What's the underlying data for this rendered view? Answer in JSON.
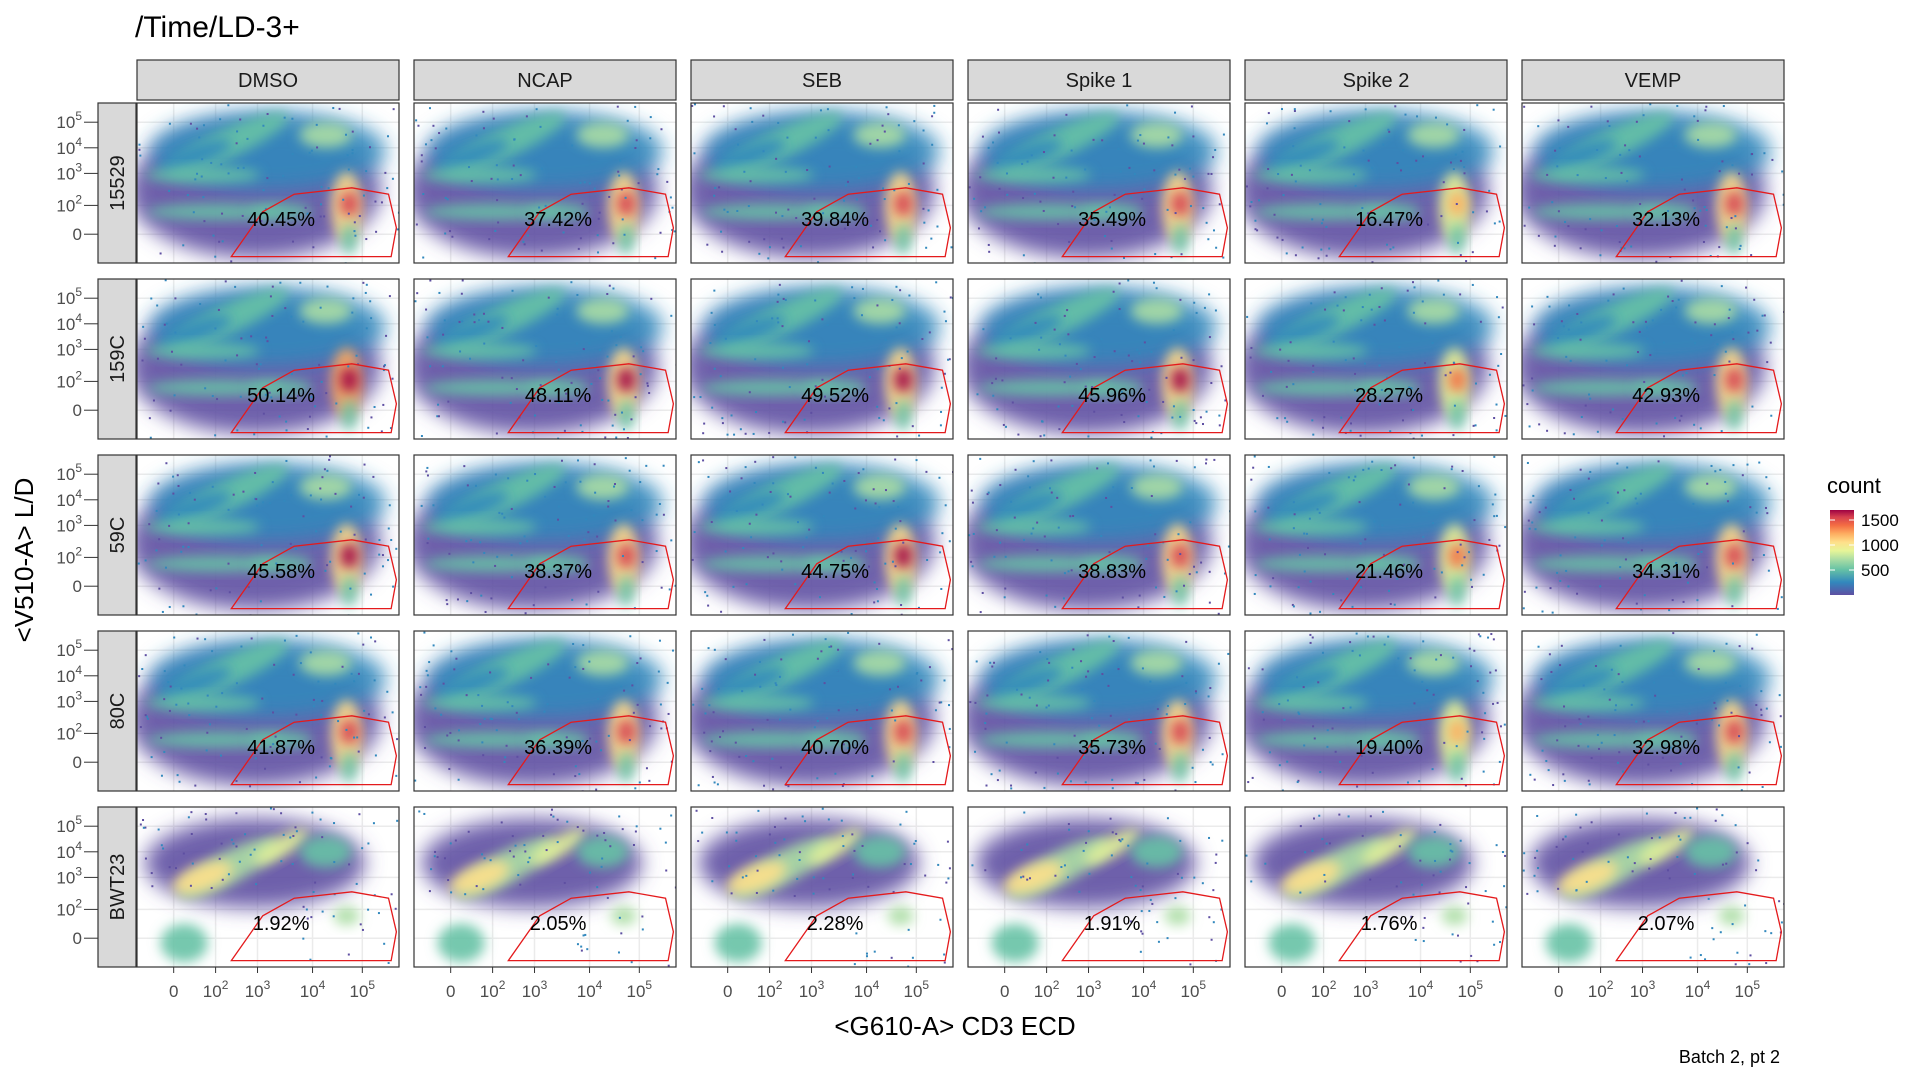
{
  "chart_data": {
    "type": "heatmap",
    "title": "/Time/LD-3+",
    "xlabel": "<G610-A> CD3 ECD",
    "ylabel": "<V510-A> L/D",
    "caption": "Batch 2, pt 2",
    "columns": [
      "DMSO",
      "NCAP",
      "SEB",
      "Spike 1",
      "Spike 2",
      "VEMP"
    ],
    "rows": [
      "15529",
      "159C",
      "59C",
      "80C",
      "BWT23"
    ],
    "x_ticks": [
      {
        "label": "0",
        "exp": ""
      },
      {
        "label": "10",
        "exp": "2"
      },
      {
        "label": "10",
        "exp": "3"
      },
      {
        "label": "10",
        "exp": "4"
      },
      {
        "label": "10",
        "exp": "5"
      }
    ],
    "y_ticks": [
      {
        "label": "10",
        "exp": "5"
      },
      {
        "label": "10",
        "exp": "4"
      },
      {
        "label": "10",
        "exp": "3"
      },
      {
        "label": "10",
        "exp": "2"
      },
      {
        "label": "0",
        "exp": ""
      }
    ],
    "gate_percentages": [
      [
        "40.45%",
        "37.42%",
        "39.84%",
        "35.49%",
        "16.47%",
        "32.13%"
      ],
      [
        "50.14%",
        "48.11%",
        "49.52%",
        "45.96%",
        "28.27%",
        "42.93%"
      ],
      [
        "45.58%",
        "38.37%",
        "44.75%",
        "38.83%",
        "21.46%",
        "34.31%"
      ],
      [
        "41.87%",
        "36.39%",
        "40.70%",
        "35.73%",
        "19.40%",
        "32.98%"
      ],
      [
        "1.92%",
        "2.05%",
        "2.28%",
        "1.91%",
        "1.76%",
        "2.07%"
      ]
    ],
    "gate_strength": [
      [
        0.85,
        0.8,
        0.85,
        0.78,
        0.45,
        0.72
      ],
      [
        1.0,
        0.95,
        0.98,
        0.92,
        0.6,
        0.88
      ],
      [
        0.95,
        0.8,
        0.9,
        0.8,
        0.5,
        0.75
      ],
      [
        0.88,
        0.78,
        0.85,
        0.76,
        0.48,
        0.72
      ],
      [
        0.15,
        0.15,
        0.17,
        0.15,
        0.13,
        0.15
      ]
    ],
    "legend": {
      "title": "count",
      "ticks": [
        "1500",
        "1000",
        "500"
      ],
      "tick_values": [
        1500,
        1000,
        500
      ],
      "max": 1700,
      "min": 0
    },
    "colors": {
      "gate": "#e41a1c",
      "strip_fill": "#d9d9d9",
      "panel_border": "#333333",
      "grid": "#ebebeb",
      "palette": [
        "#5e4fa2",
        "#3288bd",
        "#66c2a5",
        "#abdda4",
        "#e6f598",
        "#fee08b",
        "#fdae61",
        "#f46d43",
        "#d53e4f",
        "#9e0142"
      ]
    }
  }
}
